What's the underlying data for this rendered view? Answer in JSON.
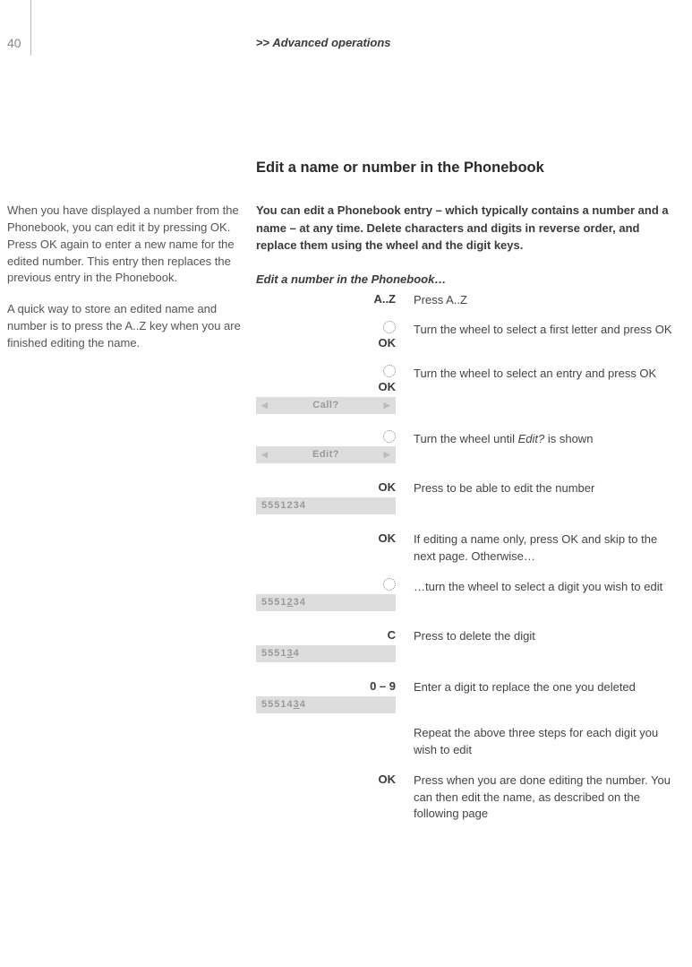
{
  "page_number": "40",
  "header": {
    "chev": ">>",
    "text": "Advanced operations"
  },
  "sidebar": {
    "p1": "When you have displayed a number from the Phonebook, you can edit it by pressing OK. Press OK again to enter a new name for the edited number. This entry then replaces the previous entry in the Phonebook.",
    "p2": "A quick way to store an edited name and number is to press the A..Z key when you are finished editing the name."
  },
  "title": "Edit a name or number in the Phonebook",
  "intro": "You can edit a Phonebook entry – which typically contains a number and a name – at any time. Delete characters and digits in reverse order, and replace them using the wheel and the digit keys.",
  "subhead": "Edit a number in the Phonebook…",
  "steps": {
    "s1": {
      "key": "A..Z",
      "desc": "Press A..Z"
    },
    "s2": {
      "key": "OK",
      "desc": "Turn the wheel to select a first letter and press OK"
    },
    "s3": {
      "key": "OK",
      "desc": "Turn the wheel to select an entry and press OK",
      "bar": "Call?"
    },
    "s4": {
      "desc_pre": "Turn the wheel until ",
      "desc_em": "Edit?",
      "desc_post": " is shown",
      "bar": "Edit?"
    },
    "s5": {
      "key": "OK",
      "desc": "Press to be able to edit the number",
      "num": "5551234"
    },
    "s6": {
      "key": "OK",
      "desc": "If editing a name only, press OK and skip to the next page. Otherwise…"
    },
    "s7": {
      "desc": "…turn the wheel to select a digit you wish to edit",
      "num_pre": "5551",
      "num_u": "2",
      "num_post": "34"
    },
    "s8": {
      "key": "C",
      "desc": "Press to delete the digit",
      "num_pre": "5551",
      "num_u": "3",
      "num_post": "4"
    },
    "s9": {
      "key": "0 – 9",
      "desc": "Enter a digit to replace the one you deleted",
      "num_pre": "55514",
      "num_u": "3",
      "num_post": "4"
    },
    "s10": {
      "desc": "Repeat the above three steps for each digit you wish to edit"
    },
    "s11": {
      "key": "OK",
      "desc": "Press when you are done editing the number. You can then edit the name, as described on the following page"
    }
  },
  "triangles": {
    "left": "◀",
    "right": "▶"
  }
}
